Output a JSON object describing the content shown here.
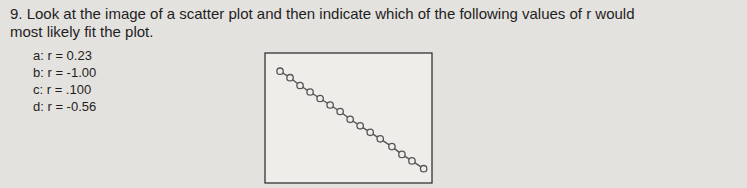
{
  "question": {
    "lines": [
      "9. Look at the image of a scatter plot and then indicate which of the following values of r would",
      "most likely fit the plot."
    ],
    "options": [
      "a:  r = 0.23",
      "b:  r = -1.00",
      "c:  r = .100",
      "d:  r = -0.56"
    ]
  },
  "chart_data": {
    "type": "scatter",
    "x": [
      0.9,
      1.5,
      2.1,
      2.7,
      3.3,
      3.9,
      4.5,
      5.1,
      5.7,
      6.3,
      6.9,
      7.6,
      8.2,
      8.8,
      9.5
    ],
    "values": [
      8.6,
      8.1,
      7.5,
      7.0,
      6.5,
      6.0,
      5.5,
      4.9,
      4.4,
      3.9,
      3.4,
      2.8,
      2.2,
      1.7,
      1.1
    ],
    "xlim": [
      0,
      10
    ],
    "ylim": [
      0,
      10
    ],
    "tick_labels": false,
    "grid": false,
    "marker": "circle",
    "line_style": "solid",
    "color": "#555555"
  }
}
